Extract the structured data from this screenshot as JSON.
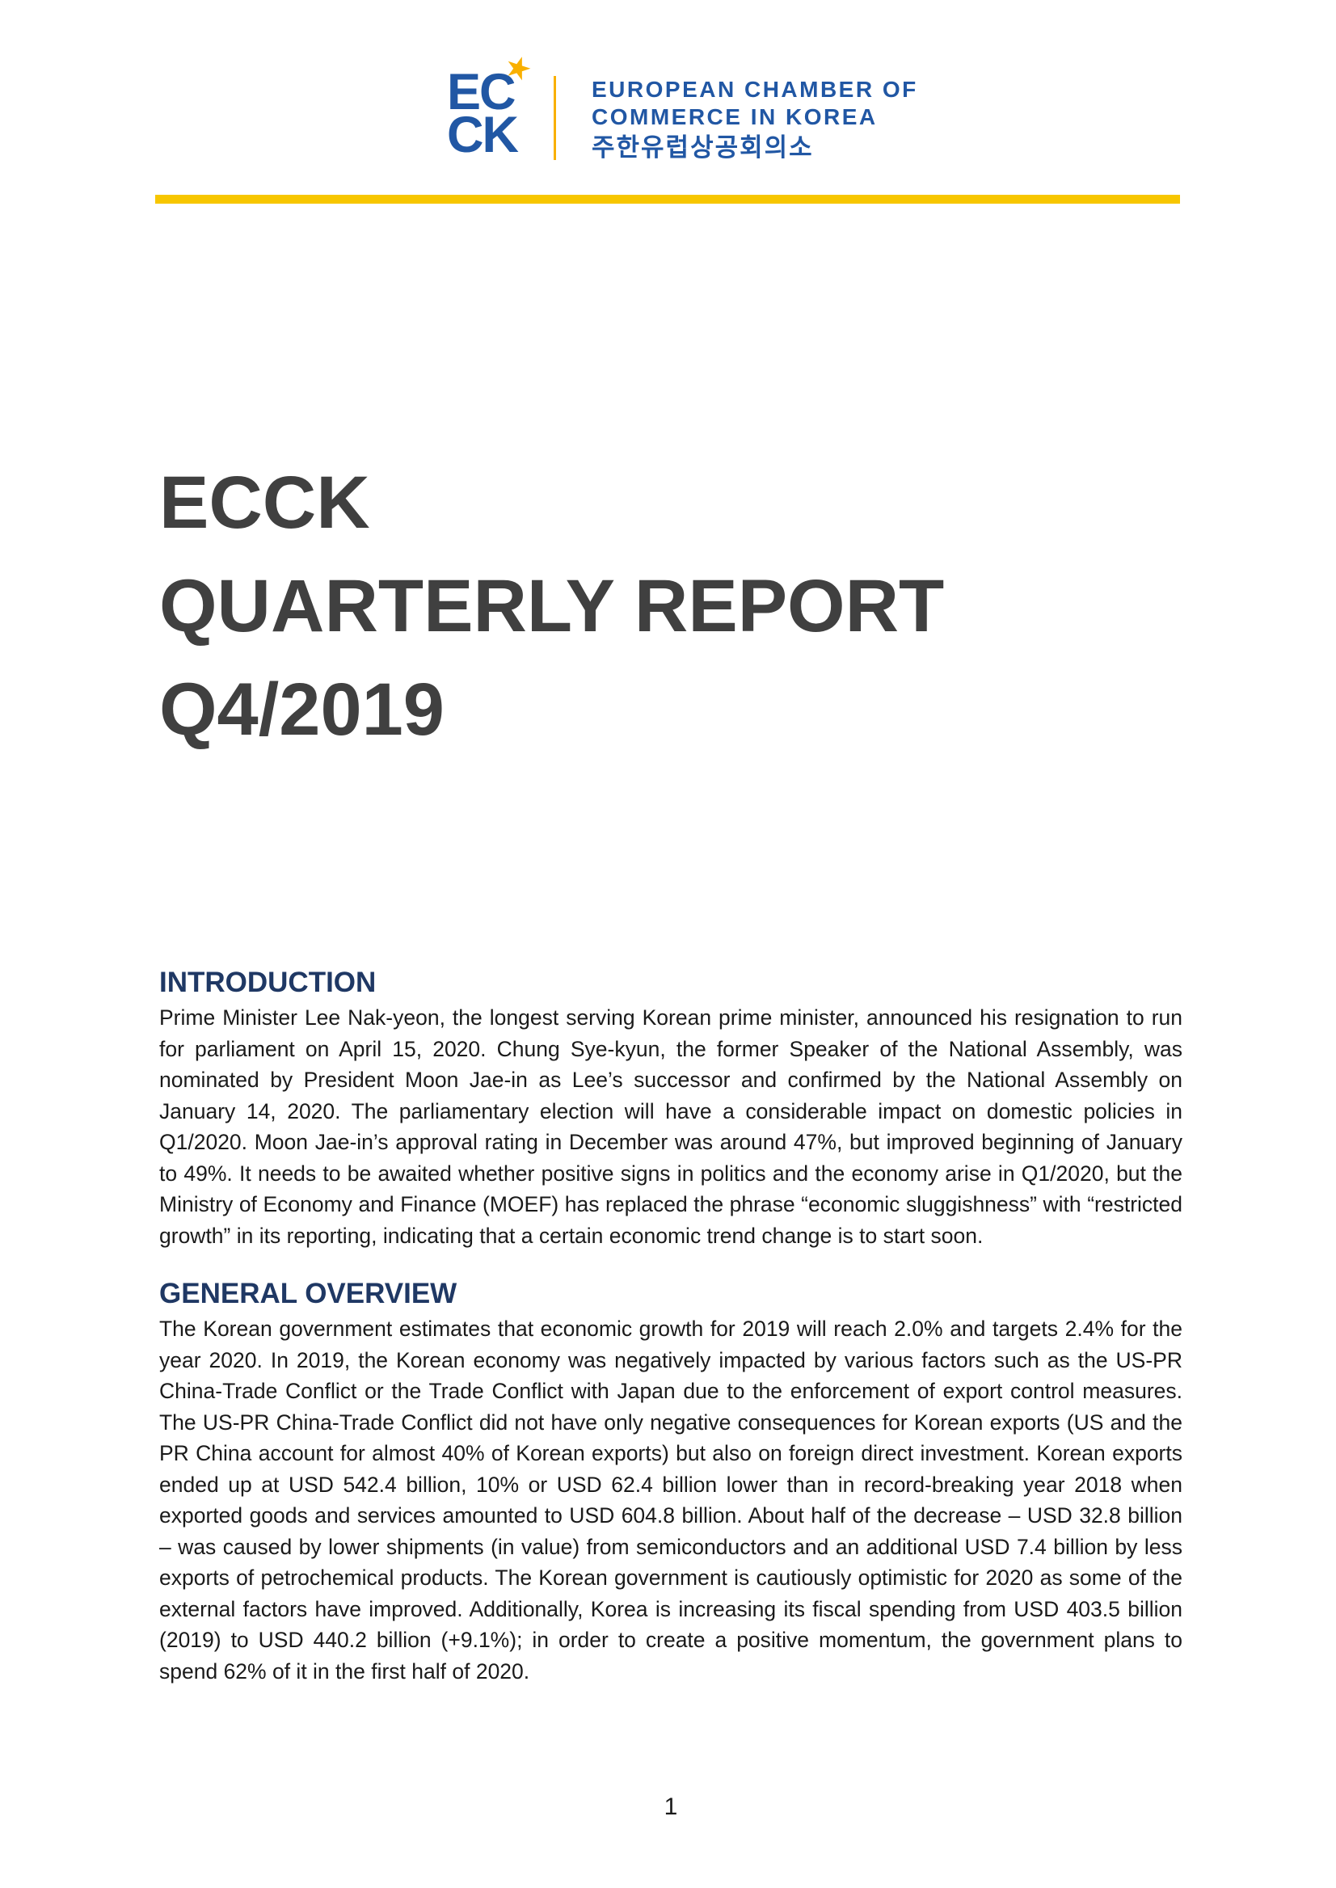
{
  "header": {
    "logo": {
      "line1": "EC",
      "line2": "CK",
      "star_glyph": "★"
    },
    "org_line1": "EUROPEAN CHAMBER OF",
    "org_line2": "COMMERCE IN KOREA",
    "org_korean": "주한유럽상공회의소"
  },
  "title": {
    "line1": "ECCK",
    "line2": "QUARTERLY REPORT",
    "line3": "Q4/2019"
  },
  "sections": [
    {
      "heading": "INTRODUCTION",
      "body": "Prime Minister Lee Nak-yeon, the longest serving Korean prime minister, announced his resignation to run for parliament on April 15, 2020. Chung Sye-kyun, the former Speaker of the National Assembly, was nominated by President Moon Jae-in as Lee’s successor and confirmed by the National Assembly on January 14, 2020. The parliamentary election will have a considerable impact on domestic policies in Q1/2020. Moon Jae-in’s approval rating in December was around 47%, but improved beginning of January to 49%. It needs to be awaited whether positive signs in politics and the economy arise in Q1/2020, but the Ministry of Economy and Finance (MOEF) has replaced the phrase “economic sluggishness” with “restricted growth” in its reporting, indicating that a certain economic trend change is to start soon."
    },
    {
      "heading": "GENERAL OVERVIEW",
      "body": "The Korean government estimates that economic growth for 2019 will reach 2.0% and targets 2.4% for the year 2020. In 2019, the Korean economy was negatively impacted by various factors such as the US-PR China-Trade Conflict or the Trade Conflict with Japan due to the enforcement of export control measures. The US-PR China-Trade Conflict did not have only negative consequences for Korean exports (US and the PR China account for almost 40% of Korean exports) but also on foreign direct investment. Korean exports ended up at USD 542.4 billion, 10% or USD 62.4 billion lower than in record-breaking year 2018 when exported goods and services amounted to USD 604.8 billion. About half of the decrease – USD 32.8 billion – was caused by lower shipments (in value) from semiconductors and an additional USD 7.4 billion by less exports of petrochemical products. The Korean government is cautiously optimistic for 2020 as some of the external factors have improved. Additionally, Korea is increasing its fiscal spending from USD 403.5 billion (2019) to USD 440.2 billion (+9.1%); in order to create a positive momentum, the government plans to spend 62% of it in the first half of 2020."
    }
  ],
  "page": {
    "number": "1"
  },
  "colors": {
    "brand_blue": "#2157A4",
    "heading_navy": "#1F3864",
    "title_gray": "#404040",
    "rule_yellow": "#F7C600",
    "accent_yellow": "#F9B000"
  }
}
